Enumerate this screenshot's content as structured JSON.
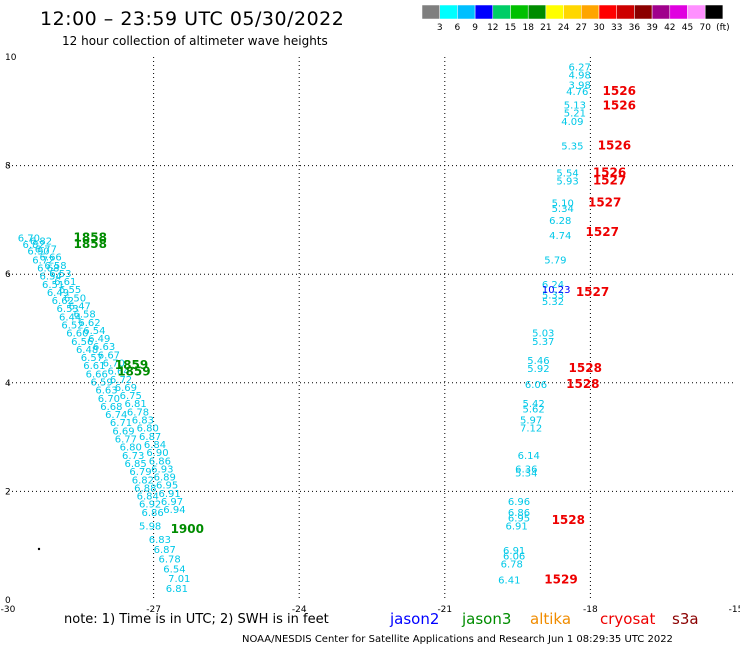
{
  "title": "12:00 – 23:59 UTC 05/30/2022",
  "subtitle": "12 hour collection of altimeter wave heights",
  "note": "note:  1) Time is in UTC; 2) SWH is in feet",
  "credit": "NOAA/NESDIS Center for Satellite Applications and Research    Jun  1 08:29:35 UTC 2022",
  "satellites": [
    {
      "name": "jason2",
      "color": "#0000ff"
    },
    {
      "name": "jason3",
      "color": "#008c00"
    },
    {
      "name": "altika",
      "color": "#f08c00"
    },
    {
      "name": "cryosat",
      "color": "#ee0000"
    },
    {
      "name": "s3a",
      "color": "#8b0000"
    }
  ],
  "colorbar": {
    "labels": [
      "3",
      "6",
      "9",
      "12",
      "15",
      "18",
      "21",
      "24",
      "27",
      "30",
      "33",
      "36",
      "39",
      "42",
      "45",
      "70",
      "(ft)"
    ],
    "colors": [
      "#7f7f7f",
      "#00ffff",
      "#00bfff",
      "#0000ff",
      "#00cd66",
      "#00c000",
      "#008c00",
      "#ffff00",
      "#ffd700",
      "#ffa500",
      "#ff0000",
      "#cd0000",
      "#8b0000",
      "#a0008c",
      "#e000e0",
      "#ff90ff",
      "#000000"
    ]
  },
  "chart_data": {
    "type": "scatter",
    "xlim": [
      -30,
      -15
    ],
    "ylim": [
      0,
      10
    ],
    "x_ticks": [
      "-30",
      "-27",
      "-24",
      "-21",
      "-18",
      "-15"
    ],
    "y_ticks": [
      "0",
      "2",
      "4",
      "6",
      "8",
      "10"
    ],
    "grid": true,
    "tracks": [
      {
        "name": "track-west",
        "color": "#00c8e8",
        "points": [
          {
            "x": -29.8,
            "y": 6.6,
            "label": "6.70"
          },
          {
            "x": -29.7,
            "y": 6.48,
            "label": "6.82"
          },
          {
            "x": -29.6,
            "y": 6.36,
            "label": "6.90"
          },
          {
            "x": -29.5,
            "y": 6.2,
            "label": "6.72"
          },
          {
            "x": -29.4,
            "y": 6.05,
            "label": "6.68"
          },
          {
            "x": -29.35,
            "y": 5.9,
            "label": "6.54"
          },
          {
            "x": -29.3,
            "y": 5.75,
            "label": "6.51"
          },
          {
            "x": -29.2,
            "y": 5.6,
            "label": "6.49"
          },
          {
            "x": -29.1,
            "y": 5.45,
            "label": "6.62"
          },
          {
            "x": -29.0,
            "y": 5.3,
            "label": "6.53"
          },
          {
            "x": -28.95,
            "y": 5.15,
            "label": "6.44"
          },
          {
            "x": -28.9,
            "y": 5.0,
            "label": "6.52"
          },
          {
            "x": -28.8,
            "y": 4.85,
            "label": "6.60"
          },
          {
            "x": -28.7,
            "y": 4.7,
            "label": "6.56"
          },
          {
            "x": -28.6,
            "y": 4.55,
            "label": "6.48"
          },
          {
            "x": -28.5,
            "y": 4.4,
            "label": "6.57"
          },
          {
            "x": -28.45,
            "y": 4.25,
            "label": "6.61"
          },
          {
            "x": -28.4,
            "y": 4.1,
            "label": "6.66"
          },
          {
            "x": -28.3,
            "y": 3.95,
            "label": "6.59"
          },
          {
            "x": -28.2,
            "y": 3.8,
            "label": "6.63"
          },
          {
            "x": -28.15,
            "y": 3.65,
            "label": "6.70"
          },
          {
            "x": -28.1,
            "y": 3.5,
            "label": "6.68"
          },
          {
            "x": -28.0,
            "y": 3.35,
            "label": "6.74"
          },
          {
            "x": -27.9,
            "y": 3.2,
            "label": "6.71"
          },
          {
            "x": -27.85,
            "y": 3.05,
            "label": "6.69"
          },
          {
            "x": -27.8,
            "y": 2.9,
            "label": "6.77"
          },
          {
            "x": -27.7,
            "y": 2.75,
            "label": "6.80"
          },
          {
            "x": -27.65,
            "y": 2.6,
            "label": "6.73"
          },
          {
            "x": -27.6,
            "y": 2.45,
            "label": "6.85"
          },
          {
            "x": -27.5,
            "y": 2.3,
            "label": "6.79"
          },
          {
            "x": -27.45,
            "y": 2.15,
            "label": "6.82"
          },
          {
            "x": -27.4,
            "y": 2.0,
            "label": "6.88"
          },
          {
            "x": -27.35,
            "y": 1.85,
            "label": "6.84"
          },
          {
            "x": -27.3,
            "y": 1.7,
            "label": "6.92"
          },
          {
            "x": -27.25,
            "y": 1.55,
            "label": "6.86"
          },
          {
            "x": -27.3,
            "y": 1.3,
            "label": "5.98"
          },
          {
            "x": -27.1,
            "y": 1.05,
            "label": "6.83"
          },
          {
            "x": -27.0,
            "y": 0.87,
            "label": "6.87"
          },
          {
            "x": -26.9,
            "y": 0.69,
            "label": "6.78"
          },
          {
            "x": -26.8,
            "y": 0.51,
            "label": "6.54"
          },
          {
            "x": -26.7,
            "y": 0.33,
            "label": "7.01"
          },
          {
            "x": -26.75,
            "y": 0.15,
            "label": "6.81"
          }
        ]
      },
      {
        "name": "track-west-2",
        "color": "#00c8e8",
        "points": [
          {
            "x": -29.55,
            "y": 6.55,
            "label": "6.82"
          },
          {
            "x": -29.45,
            "y": 6.4,
            "label": "6.77"
          },
          {
            "x": -29.35,
            "y": 6.25,
            "label": "6.66"
          },
          {
            "x": -29.25,
            "y": 6.1,
            "label": "6.58"
          },
          {
            "x": -29.15,
            "y": 5.95,
            "label": "6.53"
          },
          {
            "x": -29.05,
            "y": 5.8,
            "label": "6.61"
          },
          {
            "x": -28.95,
            "y": 5.65,
            "label": "6.55"
          },
          {
            "x": -28.85,
            "y": 5.5,
            "label": "6.50"
          },
          {
            "x": -28.75,
            "y": 5.35,
            "label": "6.47"
          },
          {
            "x": -28.65,
            "y": 5.2,
            "label": "6.58"
          },
          {
            "x": -28.55,
            "y": 5.05,
            "label": "6.62"
          },
          {
            "x": -28.45,
            "y": 4.9,
            "label": "6.54"
          },
          {
            "x": -28.35,
            "y": 4.75,
            "label": "6.49"
          },
          {
            "x": -28.25,
            "y": 4.6,
            "label": "6.63"
          },
          {
            "x": -28.15,
            "y": 4.45,
            "label": "6.67"
          },
          {
            "x": -28.05,
            "y": 4.3,
            "label": "6.70"
          },
          {
            "x": -27.95,
            "y": 4.15,
            "label": "6.64"
          },
          {
            "x": -27.9,
            "y": 4.0,
            "label": "6.72"
          },
          {
            "x": -27.8,
            "y": 3.85,
            "label": "6.69"
          },
          {
            "x": -27.7,
            "y": 3.7,
            "label": "6.75"
          },
          {
            "x": -27.6,
            "y": 3.55,
            "label": "6.81"
          },
          {
            "x": -27.55,
            "y": 3.4,
            "label": "6.78"
          },
          {
            "x": -27.45,
            "y": 3.25,
            "label": "6.83"
          },
          {
            "x": -27.35,
            "y": 3.1,
            "label": "6.80"
          },
          {
            "x": -27.3,
            "y": 2.95,
            "label": "6.87"
          },
          {
            "x": -27.2,
            "y": 2.8,
            "label": "6.84"
          },
          {
            "x": -27.15,
            "y": 2.65,
            "label": "6.90"
          },
          {
            "x": -27.1,
            "y": 2.5,
            "label": "6.86"
          },
          {
            "x": -27.05,
            "y": 2.35,
            "label": "6.93"
          },
          {
            "x": -27.0,
            "y": 2.2,
            "label": "6.89"
          },
          {
            "x": -26.95,
            "y": 2.05,
            "label": "6.95"
          },
          {
            "x": -26.9,
            "y": 1.9,
            "label": "6.91"
          },
          {
            "x": -26.85,
            "y": 1.75,
            "label": "6.97"
          },
          {
            "x": -26.8,
            "y": 1.6,
            "label": "6.94"
          }
        ]
      },
      {
        "name": "track-east",
        "color": "#00c8e8",
        "points": [
          {
            "x": -18.45,
            "y": 9.75,
            "label": "6.27"
          },
          {
            "x": -18.45,
            "y": 9.6,
            "label": "4.98"
          },
          {
            "x": -18.45,
            "y": 9.42,
            "label": "3.98"
          },
          {
            "x": -18.5,
            "y": 9.3,
            "label": "4.76"
          },
          {
            "x": -18.55,
            "y": 9.05,
            "label": "5.13"
          },
          {
            "x": -18.55,
            "y": 8.9,
            "label": "5.21"
          },
          {
            "x": -18.6,
            "y": 8.75,
            "label": "4.09"
          },
          {
            "x": -18.6,
            "y": 8.3,
            "label": "5.35"
          },
          {
            "x": -18.7,
            "y": 7.8,
            "label": "5.54"
          },
          {
            "x": -18.7,
            "y": 7.65,
            "label": "5.93"
          },
          {
            "x": -18.8,
            "y": 7.25,
            "label": "5.10"
          },
          {
            "x": -18.8,
            "y": 7.15,
            "label": "5.34"
          },
          {
            "x": -18.85,
            "y": 6.92,
            "label": "6.28"
          },
          {
            "x": -18.85,
            "y": 6.65,
            "label": "4.74"
          },
          {
            "x": -18.95,
            "y": 6.2,
            "label": "5.79"
          },
          {
            "x": -19.0,
            "y": 5.75,
            "label": "6.24"
          },
          {
            "x": -19.0,
            "y": 5.55,
            "label": "5.33"
          },
          {
            "x": -19.0,
            "y": 5.43,
            "label": "5.32"
          },
          {
            "x": -19.2,
            "y": 4.85,
            "label": "5.03"
          },
          {
            "x": -19.2,
            "y": 4.7,
            "label": "5.37"
          },
          {
            "x": -19.3,
            "y": 4.35,
            "label": "5.46"
          },
          {
            "x": -19.3,
            "y": 4.2,
            "label": "5.92"
          },
          {
            "x": -19.35,
            "y": 3.9,
            "label": "6.06"
          },
          {
            "x": -19.4,
            "y": 3.55,
            "label": "5.42"
          },
          {
            "x": -19.4,
            "y": 3.45,
            "label": "5.62"
          },
          {
            "x": -19.45,
            "y": 3.25,
            "label": "5.97"
          },
          {
            "x": -19.45,
            "y": 3.1,
            "label": "7.12"
          },
          {
            "x": -19.5,
            "y": 2.6,
            "label": "6.14"
          },
          {
            "x": -19.55,
            "y": 2.35,
            "label": "6.36"
          },
          {
            "x": -19.55,
            "y": 2.27,
            "label": "5.34"
          },
          {
            "x": -19.7,
            "y": 1.75,
            "label": "6.96"
          },
          {
            "x": -19.7,
            "y": 1.55,
            "label": "6.86"
          },
          {
            "x": -19.7,
            "y": 1.45,
            "label": "6.95"
          },
          {
            "x": -19.75,
            "y": 1.3,
            "label": "6.91"
          },
          {
            "x": -19.8,
            "y": 0.85,
            "label": "6.91"
          },
          {
            "x": -19.8,
            "y": 0.75,
            "label": "6.06"
          },
          {
            "x": -19.85,
            "y": 0.6,
            "label": "6.78"
          },
          {
            "x": -19.9,
            "y": 0.3,
            "label": "6.41"
          }
        ]
      }
    ],
    "blue_points": [
      {
        "x": -19.0,
        "y": 5.65,
        "label": "10.23",
        "color": "#0000ff"
      }
    ],
    "time_labels": [
      {
        "x": -28.65,
        "y": 6.6,
        "label": "1858",
        "color": "#008c00"
      },
      {
        "x": -28.65,
        "y": 6.48,
        "label": "1858",
        "color": "#008c00"
      },
      {
        "x": -27.8,
        "y": 4.25,
        "label": "1859",
        "color": "#008c00"
      },
      {
        "x": -27.75,
        "y": 4.13,
        "label": "1859",
        "color": "#008c00"
      },
      {
        "x": -26.65,
        "y": 1.23,
        "label": "1900",
        "color": "#008c00"
      },
      {
        "x": -17.75,
        "y": 9.3,
        "label": "1526",
        "color": "#ee0000"
      },
      {
        "x": -17.75,
        "y": 9.03,
        "label": "1526",
        "color": "#ee0000"
      },
      {
        "x": -17.85,
        "y": 8.3,
        "label": "1526",
        "color": "#ee0000"
      },
      {
        "x": -17.95,
        "y": 7.8,
        "label": "1526",
        "color": "#ee0000"
      },
      {
        "x": -17.95,
        "y": 7.65,
        "label": "1527",
        "color": "#ee0000"
      },
      {
        "x": -18.05,
        "y": 7.25,
        "label": "1527",
        "color": "#ee0000"
      },
      {
        "x": -18.1,
        "y": 6.7,
        "label": "1527",
        "color": "#ee0000"
      },
      {
        "x": -18.3,
        "y": 5.6,
        "label": "1527",
        "color": "#ee0000"
      },
      {
        "x": -18.45,
        "y": 4.2,
        "label": "1528",
        "color": "#ee0000"
      },
      {
        "x": -18.5,
        "y": 3.9,
        "label": "1528",
        "color": "#ee0000"
      },
      {
        "x": -18.8,
        "y": 1.4,
        "label": "1528",
        "color": "#ee0000"
      },
      {
        "x": -18.95,
        "y": 0.3,
        "label": "1529",
        "color": "#ee0000"
      }
    ]
  }
}
